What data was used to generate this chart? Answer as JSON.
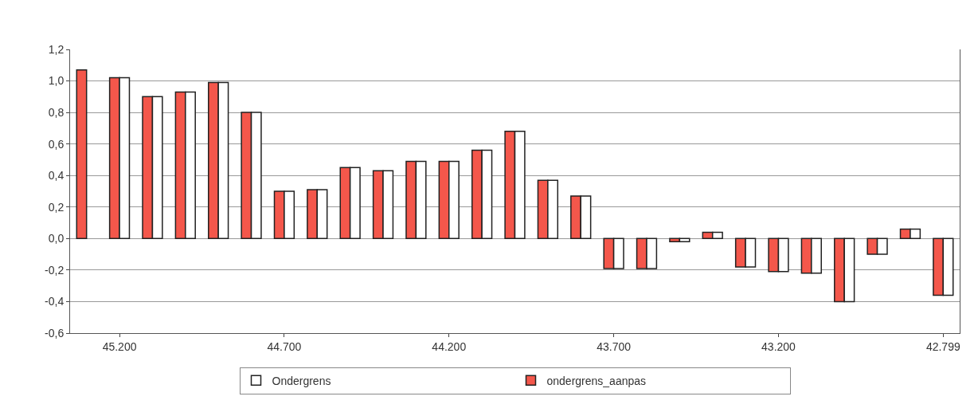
{
  "chart_data": {
    "type": "bar",
    "categories": [
      null,
      "45.200",
      null,
      null,
      null,
      null,
      "44.700",
      null,
      null,
      null,
      null,
      "44.200",
      null,
      null,
      null,
      null,
      "43.700",
      null,
      null,
      null,
      null,
      "43.200",
      null,
      null,
      null,
      null,
      "42.799"
    ],
    "series": [
      {
        "name": "ondergrens_aanpas",
        "color": "#f4574b",
        "values": [
          1.07,
          1.02,
          0.9,
          0.93,
          0.99,
          0.8,
          0.3,
          0.31,
          0.45,
          0.43,
          0.49,
          0.49,
          0.56,
          0.68,
          0.37,
          0.27,
          -0.19,
          -0.19,
          -0.02,
          0.04,
          -0.18,
          -0.21,
          -0.22,
          -0.4,
          -0.1,
          0.06,
          -0.36
        ]
      },
      {
        "name": "Ondergrens",
        "color": "#ffffff",
        "values": [
          null,
          1.02,
          0.9,
          0.93,
          0.99,
          0.8,
          0.3,
          0.31,
          0.45,
          0.43,
          0.49,
          0.49,
          0.56,
          0.68,
          0.37,
          0.27,
          -0.19,
          -0.19,
          -0.02,
          0.04,
          -0.18,
          -0.21,
          -0.22,
          -0.4,
          -0.1,
          0.06,
          -0.36
        ]
      }
    ],
    "ylim": [
      -0.6,
      1.2
    ],
    "yticks": [
      {
        "value": -0.6,
        "label": "-0,6"
      },
      {
        "value": -0.4,
        "label": "-0,4"
      },
      {
        "value": -0.2,
        "label": "-0,2"
      },
      {
        "value": 0,
        "label": "0,0"
      },
      {
        "value": 0.2,
        "label": "0,2"
      },
      {
        "value": 0.4,
        "label": "0,4"
      },
      {
        "value": 0.6,
        "label": "0,6"
      },
      {
        "value": 0.8,
        "label": "0,8"
      },
      {
        "value": 1.0,
        "label": "1,0"
      },
      {
        "value": 1.2,
        "label": "1,2"
      }
    ],
    "grid": "y",
    "legend": "bottom"
  }
}
